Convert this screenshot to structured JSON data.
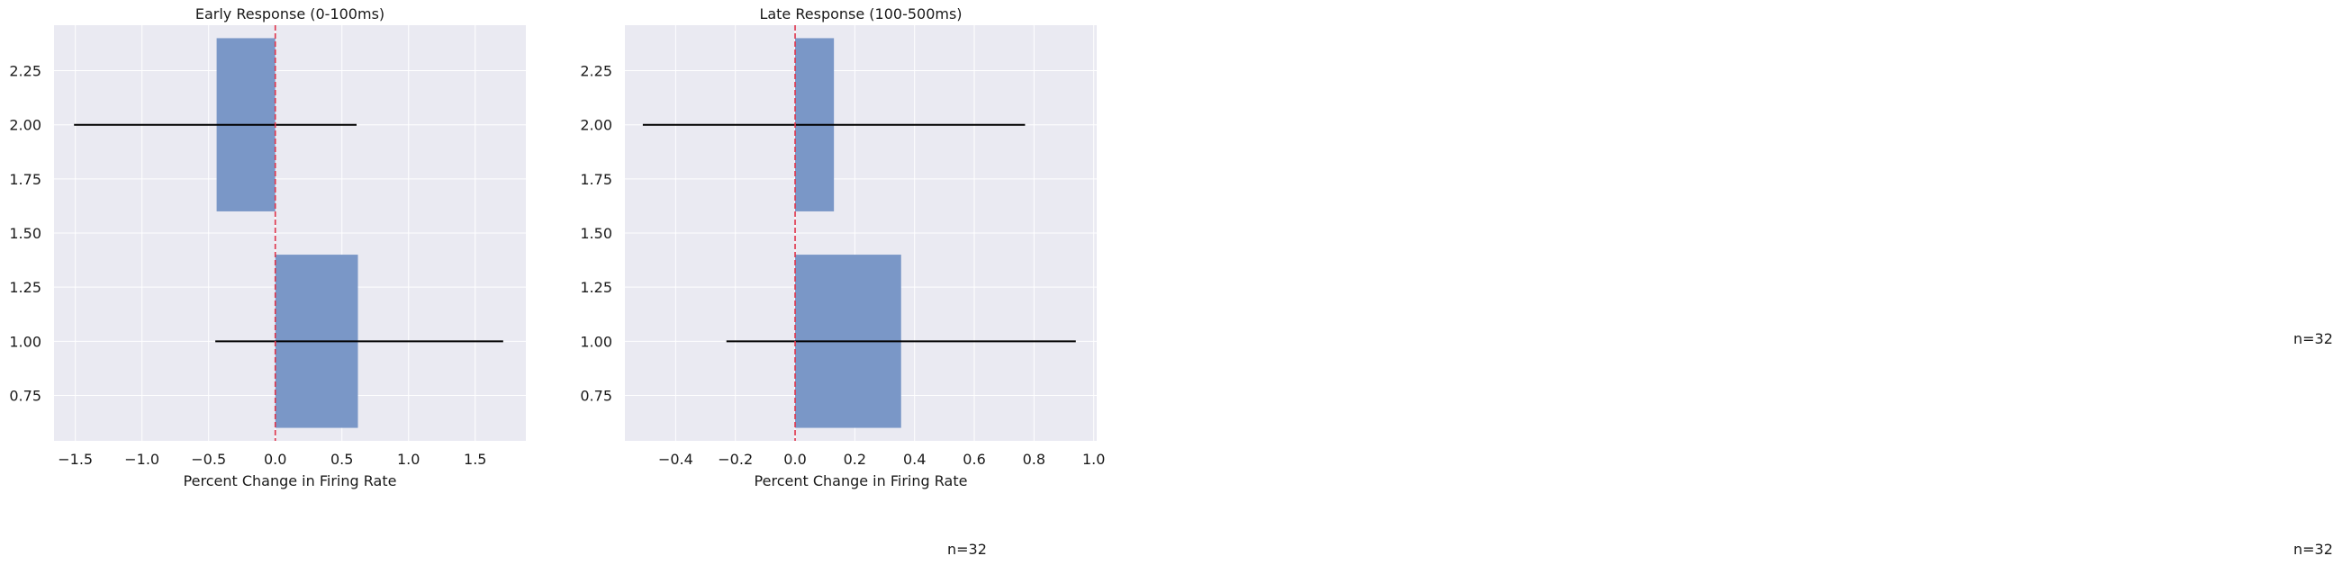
{
  "colors": {
    "plot_background": "#eaeaf2",
    "grid": "#ffffff",
    "bar": "#7a97c7",
    "errorbar": "#000000",
    "zero_line": "#e0344a",
    "text": "#1a1a1a"
  },
  "chart_data": [
    {
      "type": "bar",
      "orientation": "horizontal",
      "title": "Early Response (0-100ms)",
      "xlabel": "Percent Change in Firing Rate",
      "ylabel": "",
      "xlim": [
        -1.66,
        1.88
      ],
      "ylim": [
        0.54,
        2.46
      ],
      "xticks": [
        -1.5,
        -1.0,
        -0.5,
        0.0,
        0.5,
        1.0,
        1.5
      ],
      "xtick_labels": [
        "−1.5",
        "−1.0",
        "−0.5",
        "0.0",
        "0.5",
        "1.0",
        "1.5"
      ],
      "yticks": [
        0.75,
        1.0,
        1.25,
        1.5,
        1.75,
        2.0,
        2.25
      ],
      "ytick_labels": [
        "0.75",
        "1.00",
        "1.25",
        "1.50",
        "1.75",
        "2.00",
        "2.25"
      ],
      "grid": true,
      "zero_line": 0,
      "bar_height": 0.8,
      "bars": [
        {
          "y": 1,
          "value": 0.62,
          "err_low": -0.45,
          "err_high": 1.71
        },
        {
          "y": 2,
          "value": -0.44,
          "err_low": -1.51,
          "err_high": 0.61
        }
      ]
    },
    {
      "type": "bar",
      "orientation": "horizontal",
      "title": "Late Response (100-500ms)",
      "xlabel": "Percent Change in Firing Rate",
      "ylabel": "",
      "xlim": [
        -0.57,
        1.01
      ],
      "ylim": [
        0.54,
        2.46
      ],
      "xticks": [
        -0.4,
        -0.2,
        0.0,
        0.2,
        0.4,
        0.6,
        0.8,
        1.0
      ],
      "xtick_labels": [
        "−0.4",
        "−0.2",
        "0.0",
        "0.2",
        "0.4",
        "0.6",
        "0.8",
        "1.0"
      ],
      "yticks": [
        0.75,
        1.0,
        1.25,
        1.5,
        1.75,
        2.0,
        2.25
      ],
      "ytick_labels": [
        "0.75",
        "1.00",
        "1.25",
        "1.50",
        "1.75",
        "2.00",
        "2.25"
      ],
      "grid": true,
      "zero_line": 0,
      "bar_height": 0.8,
      "bars": [
        {
          "y": 1,
          "value": 0.355,
          "err_low": -0.23,
          "err_high": 0.94
        },
        {
          "y": 2,
          "value": 0.13,
          "err_low": -0.51,
          "err_high": 0.77
        }
      ]
    }
  ],
  "annotations": [
    "n=32",
    "n=32",
    "n=32"
  ]
}
